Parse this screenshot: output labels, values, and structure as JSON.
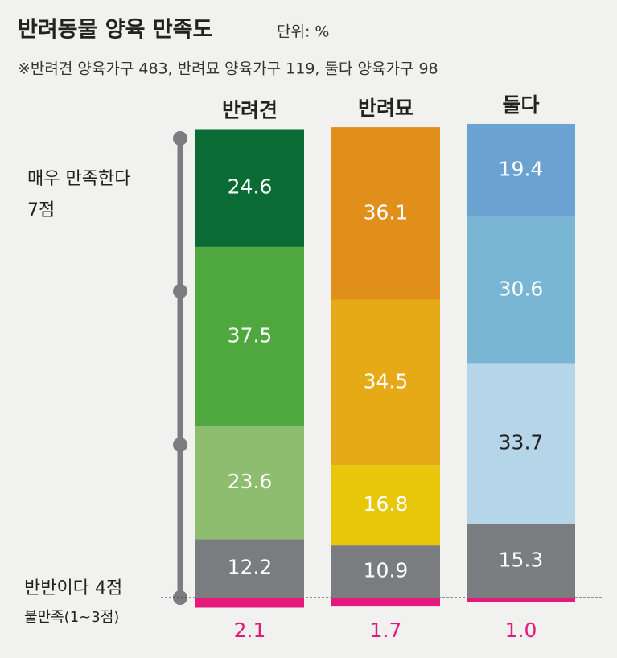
{
  "chart_data": {
    "type": "stacked_bar",
    "title": "반려동물 양육 만족도",
    "unit": "단위: %",
    "subtitle": "※반려견 양육가구 483, 반려묘 양육가구 119, 둘다 양육가구 98",
    "scale_labels": {
      "top": [
        "매우 만족한다",
        "7점"
      ],
      "middle": "반반이다 4점",
      "bottom": "불만족(1~3점)"
    },
    "columns": [
      {
        "name": "반려견",
        "values": [
          24.6,
          37.5,
          23.6,
          12.2,
          2.1
        ],
        "colors": [
          "#0b6b35",
          "#4ea83d",
          "#8fbd6f",
          "#7a7c80",
          "#e5187b"
        ],
        "label_colors": [
          "#ffffff",
          "#ffffff",
          "#ffffff",
          "#ffffff",
          "#e5187b"
        ]
      },
      {
        "name": "반려묘",
        "values": [
          36.1,
          34.5,
          16.8,
          10.9,
          1.7
        ],
        "colors": [
          "#e0901a",
          "#e6aa17",
          "#e8c60a",
          "#7a7c80",
          "#e5187b"
        ],
        "label_colors": [
          "#ffffff",
          "#ffffff",
          "#ffffff",
          "#ffffff",
          "#e5187b"
        ]
      },
      {
        "name": "둘다",
        "values": [
          19.4,
          30.6,
          33.7,
          15.3,
          1
        ],
        "value_labels": [
          "19.4",
          "30.6",
          "33.7",
          "15.3",
          "1.0"
        ],
        "colors": [
          "#6aa2d2",
          "#78b6d3",
          "#b5d5e8",
          "#7a7c80",
          "#e5187b"
        ],
        "label_colors": [
          "#ffffff",
          "#ffffff",
          "#222222",
          "#ffffff",
          "#e5187b"
        ]
      }
    ]
  }
}
